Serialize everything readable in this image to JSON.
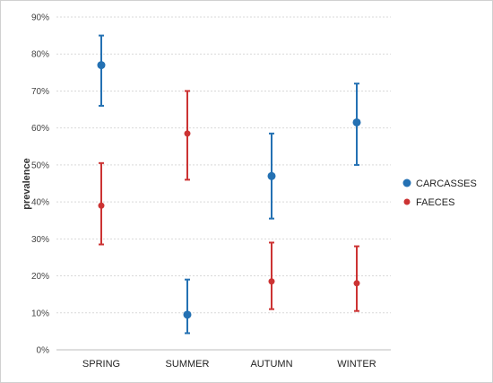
{
  "chart_data": {
    "type": "scatter",
    "title": "",
    "xlabel": "",
    "ylabel": "prevalence",
    "ylim": [
      0,
      90
    ],
    "yticks": [
      0,
      10,
      20,
      30,
      40,
      50,
      60,
      70,
      80,
      90
    ],
    "ytick_labels": [
      "0%",
      "10%",
      "20%",
      "30%",
      "40%",
      "50%",
      "60%",
      "70%",
      "80%",
      "90%"
    ],
    "grid": true,
    "legend_position": "right",
    "categories": [
      "SPRING",
      "SUMMER",
      "AUTUMN",
      "WINTER"
    ],
    "series": [
      {
        "name": "CARCASSES",
        "color": "#2471b3",
        "values": [
          77,
          9.5,
          47,
          61.5
        ],
        "lower": [
          66,
          4.5,
          35.5,
          50
        ],
        "upper": [
          85,
          19,
          58.5,
          72
        ]
      },
      {
        "name": "FAECES",
        "color": "#cc3333",
        "values": [
          39,
          58.5,
          18.5,
          18
        ],
        "lower": [
          28.5,
          46,
          11,
          10.5
        ],
        "upper": [
          50.5,
          70,
          29,
          28
        ]
      }
    ]
  }
}
